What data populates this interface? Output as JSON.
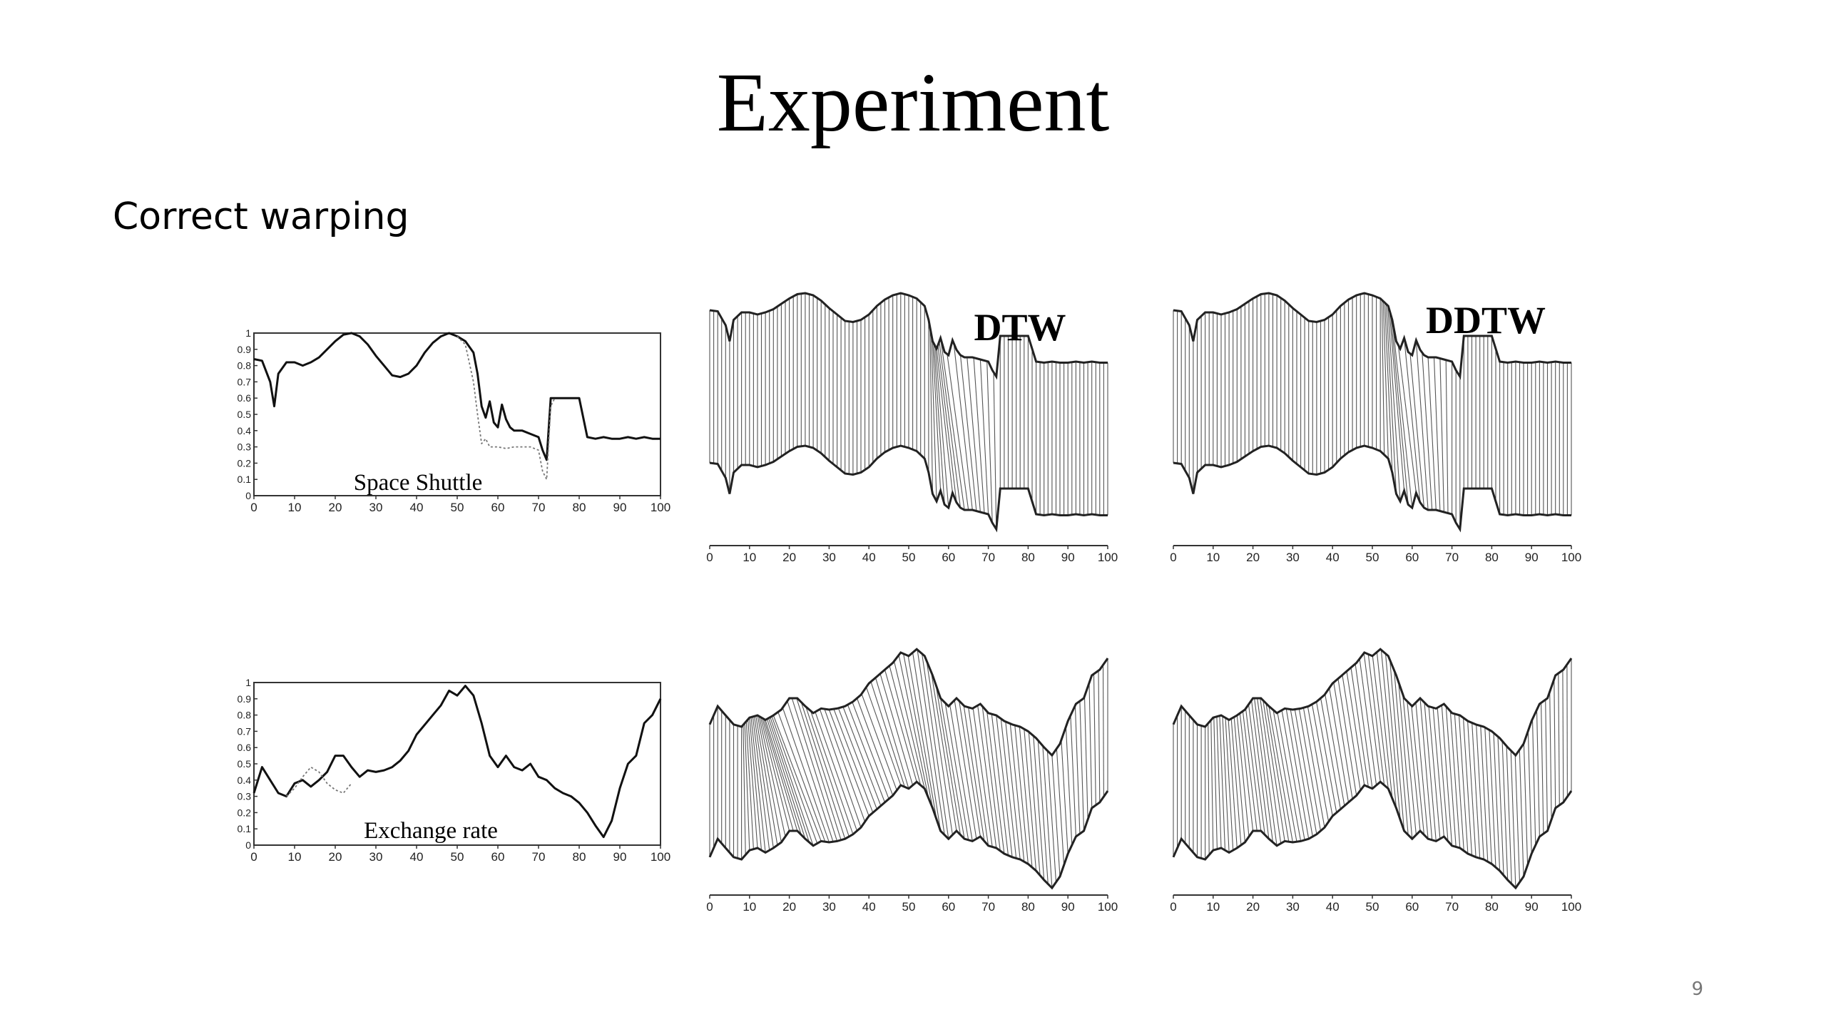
{
  "slide": {
    "title": "Experiment",
    "subtitle": "Correct warping",
    "page_number": "9"
  },
  "chart_data": [
    {
      "id": "space-shuttle",
      "type": "line",
      "annotation": "Space Shuttle",
      "xlim": [
        0,
        100
      ],
      "ylim": [
        0,
        1
      ],
      "x_ticks": [
        "0",
        "10",
        "20",
        "30",
        "40",
        "50",
        "60",
        "70",
        "80",
        "90",
        "100"
      ],
      "y_ticks": [
        "0",
        "0.1",
        "0.2",
        "0.3",
        "0.4",
        "0.5",
        "0.6",
        "0.7",
        "0.8",
        "0.9",
        "1"
      ],
      "series": [
        {
          "style": "solid",
          "x": [
            0,
            2,
            4,
            5,
            6,
            8,
            10,
            12,
            14,
            16,
            18,
            20,
            22,
            24,
            26,
            28,
            30,
            32,
            34,
            36,
            38,
            40,
            42,
            44,
            46,
            48,
            50,
            52,
            54,
            55,
            56,
            57,
            58,
            59,
            60,
            61,
            62,
            63,
            64,
            66,
            68,
            70,
            71,
            72,
            73,
            74,
            76,
            78,
            80,
            82,
            84,
            86,
            88,
            90,
            92,
            94,
            96,
            98,
            100
          ],
          "y": [
            0.84,
            0.83,
            0.7,
            0.55,
            0.75,
            0.82,
            0.82,
            0.8,
            0.82,
            0.85,
            0.9,
            0.95,
            0.99,
            1.0,
            0.98,
            0.93,
            0.86,
            0.8,
            0.74,
            0.73,
            0.75,
            0.8,
            0.88,
            0.94,
            0.98,
            1.0,
            0.98,
            0.95,
            0.88,
            0.75,
            0.55,
            0.48,
            0.58,
            0.45,
            0.42,
            0.56,
            0.47,
            0.42,
            0.4,
            0.4,
            0.38,
            0.36,
            0.28,
            0.22,
            0.6,
            0.6,
            0.6,
            0.6,
            0.6,
            0.36,
            0.35,
            0.36,
            0.35,
            0.35,
            0.36,
            0.35,
            0.36,
            0.35,
            0.35
          ]
        },
        {
          "style": "dotted",
          "x": [
            50,
            52,
            54,
            55,
            56,
            57,
            58,
            60,
            62,
            64,
            66,
            68,
            70,
            71,
            72,
            73,
            74
          ],
          "y": [
            0.98,
            0.93,
            0.7,
            0.5,
            0.32,
            0.35,
            0.3,
            0.3,
            0.29,
            0.3,
            0.3,
            0.3,
            0.28,
            0.15,
            0.1,
            0.55,
            0.6
          ]
        }
      ]
    },
    {
      "id": "exchange-rate",
      "type": "line",
      "annotation": "Exchange rate",
      "xlim": [
        0,
        100
      ],
      "ylim": [
        0,
        1
      ],
      "x_ticks": [
        "0",
        "10",
        "20",
        "30",
        "40",
        "50",
        "60",
        "70",
        "80",
        "90",
        "100"
      ],
      "y_ticks": [
        "0",
        "0.1",
        "0.2",
        "0.3",
        "0.4",
        "0.5",
        "0.6",
        "0.7",
        "0.8",
        "0.9",
        "1"
      ],
      "series": [
        {
          "style": "solid",
          "x": [
            0,
            2,
            4,
            6,
            8,
            10,
            12,
            14,
            16,
            18,
            20,
            22,
            24,
            26,
            28,
            30,
            32,
            34,
            36,
            38,
            40,
            42,
            44,
            46,
            48,
            50,
            52,
            54,
            56,
            58,
            60,
            62,
            64,
            66,
            68,
            70,
            72,
            74,
            76,
            78,
            80,
            82,
            84,
            86,
            88,
            90,
            92,
            94,
            96,
            98,
            100
          ],
          "y": [
            0.32,
            0.48,
            0.4,
            0.32,
            0.3,
            0.38,
            0.4,
            0.36,
            0.4,
            0.45,
            0.55,
            0.55,
            0.48,
            0.42,
            0.46,
            0.45,
            0.46,
            0.48,
            0.52,
            0.58,
            0.68,
            0.74,
            0.8,
            0.86,
            0.95,
            0.92,
            0.98,
            0.92,
            0.75,
            0.55,
            0.48,
            0.55,
            0.48,
            0.46,
            0.5,
            0.42,
            0.4,
            0.35,
            0.32,
            0.3,
            0.26,
            0.2,
            0.12,
            0.05,
            0.15,
            0.35,
            0.5,
            0.55,
            0.75,
            0.8,
            0.9
          ]
        },
        {
          "style": "dotted",
          "x": [
            8,
            10,
            12,
            14,
            16,
            18,
            20,
            22,
            24
          ],
          "y": [
            0.3,
            0.35,
            0.42,
            0.48,
            0.45,
            0.38,
            0.34,
            0.32,
            0.38
          ]
        }
      ]
    },
    {
      "id": "shuttle-dtw",
      "type": "line",
      "label": "DTW",
      "xlim": [
        0,
        100
      ],
      "x_ticks": [
        "0",
        "10",
        "20",
        "30",
        "40",
        "50",
        "60",
        "70",
        "80",
        "90",
        "100"
      ]
    },
    {
      "id": "shuttle-ddtw",
      "type": "line",
      "label": "DDTW",
      "xlim": [
        0,
        100
      ],
      "x_ticks": [
        "0",
        "10",
        "20",
        "30",
        "40",
        "50",
        "60",
        "70",
        "80",
        "90",
        "100"
      ]
    },
    {
      "id": "exchange-dtw",
      "type": "line",
      "xlim": [
        0,
        100
      ],
      "x_ticks": [
        "0",
        "10",
        "20",
        "30",
        "40",
        "50",
        "60",
        "70",
        "80",
        "90",
        "100"
      ]
    },
    {
      "id": "exchange-ddtw",
      "type": "line",
      "xlim": [
        0,
        100
      ],
      "x_ticks": [
        "0",
        "10",
        "20",
        "30",
        "40",
        "50",
        "60",
        "70",
        "80",
        "90",
        "100"
      ]
    }
  ]
}
